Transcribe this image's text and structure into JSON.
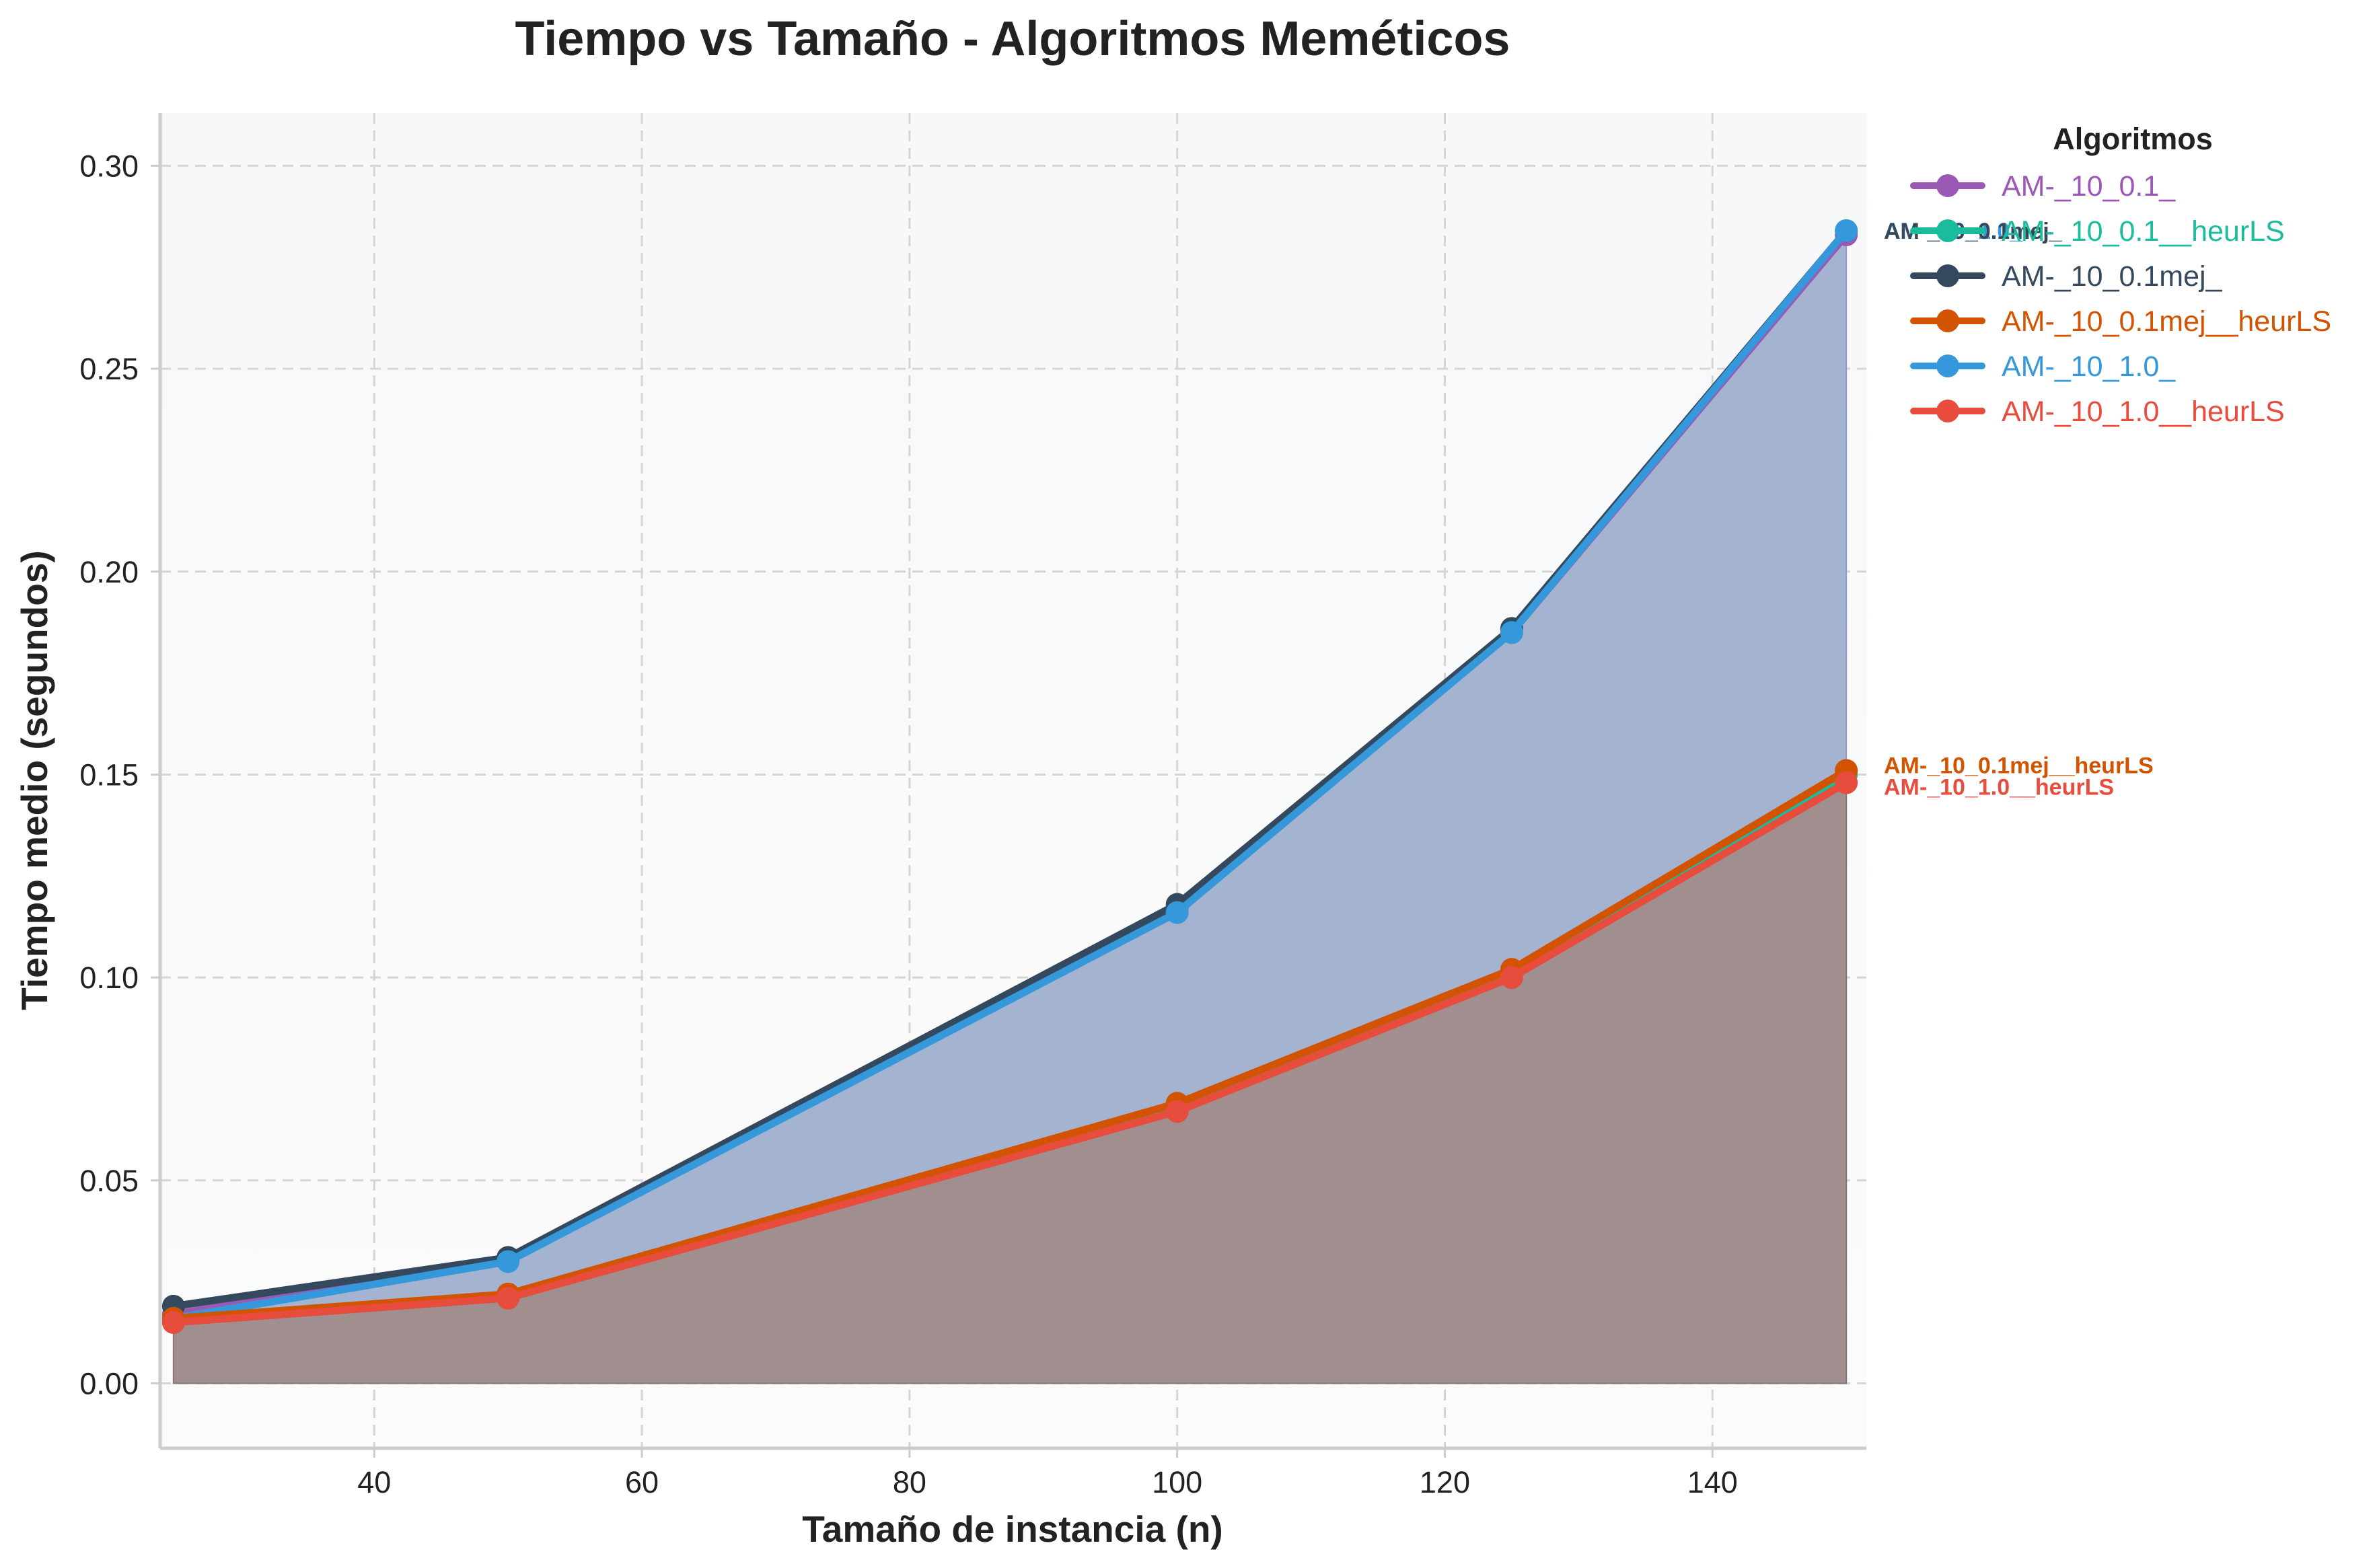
{
  "chart_data": {
    "type": "line",
    "title": "Tiempo vs Tamaño - Algoritmos Meméticos",
    "xlabel": "Tamaño de instancia (n)",
    "ylabel": "Tiempo medio (segundos)",
    "x": [
      25,
      50,
      100,
      125,
      150
    ],
    "xlim": [
      24,
      151.5
    ],
    "ylim": [
      -0.016,
      0.313
    ],
    "xticks": [
      40,
      60,
      80,
      100,
      120,
      140
    ],
    "yticks": [
      0.0,
      0.05,
      0.1,
      0.15,
      0.2,
      0.25,
      0.3
    ],
    "ytick_labels": [
      "0.00",
      "0.05",
      "0.10",
      "0.15",
      "0.20",
      "0.25",
      "0.30"
    ],
    "grid": true,
    "legend": {
      "title": "Algoritmos",
      "placement": "outside-top-right"
    },
    "series": [
      {
        "name": "AM-_10_0.1_",
        "color": "#9b59b6",
        "values": [
          0.017,
          0.031,
          0.117,
          0.185,
          0.283
        ]
      },
      {
        "name": "AM-_10_0.1__heurLS",
        "color": "#1abc9c",
        "values": [
          0.015,
          0.021,
          0.068,
          0.101,
          0.15
        ]
      },
      {
        "name": "AM-_10_0.1mej_",
        "color": "#34495e",
        "values": [
          0.019,
          0.031,
          0.118,
          0.186,
          0.284
        ]
      },
      {
        "name": "AM-_10_0.1mej__heurLS",
        "color": "#d35400",
        "values": [
          0.016,
          0.022,
          0.069,
          0.102,
          0.151
        ]
      },
      {
        "name": "AM-_10_1.0_",
        "color": "#3498db",
        "values": [
          0.016,
          0.03,
          0.116,
          0.185,
          0.284
        ]
      },
      {
        "name": "AM-_10_1.0__heurLS",
        "color": "#e74c3c",
        "values": [
          0.015,
          0.021,
          0.067,
          0.1,
          0.148
        ]
      }
    ],
    "end_labels": [
      {
        "text": "AM-_10_1.0_",
        "color": "#3498db",
        "y": 0.284
      },
      {
        "text": "AM-_10_0.1mej_",
        "color": "#34495e",
        "y": 0.284
      },
      {
        "text": "AM-_10_0.1mej__heurLS",
        "color": "#d35400",
        "y": 0.151
      },
      {
        "text": "AM-_10_1.0__heurLS",
        "color": "#e74c3c",
        "y": 0.148
      }
    ],
    "fill_colors": {
      "upper_band": "#a4b3d0",
      "lower_band": "#a18e8e"
    }
  }
}
